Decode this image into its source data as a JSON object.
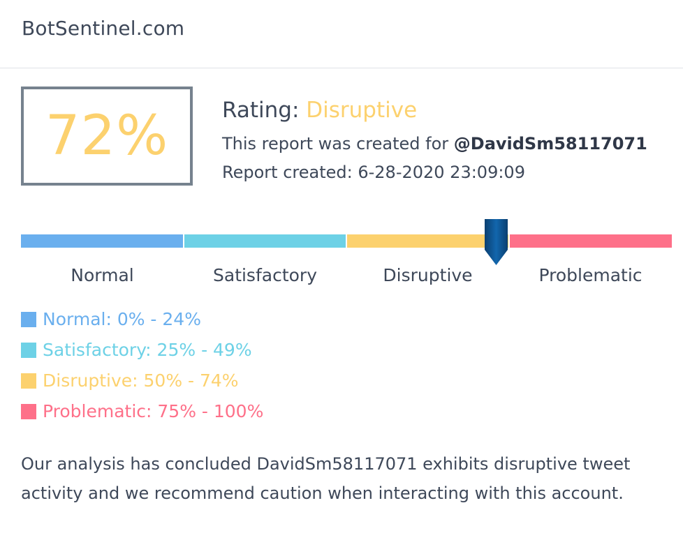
{
  "header": {
    "site_title": "BotSentinel.com"
  },
  "score": {
    "value": "72%",
    "percent": 72
  },
  "rating": {
    "label": "Rating:",
    "value": "Disruptive"
  },
  "report": {
    "created_for_text": "This report was created for",
    "handle": "@DavidSm58117071",
    "created_label": "Report created:",
    "created_at": "6-28-2020 23:09:09"
  },
  "scale": {
    "pointer_percent": 73,
    "segments": [
      {
        "label": "Normal",
        "color": "#6aafee"
      },
      {
        "label": "Satisfactory",
        "color": "#6dd1e6"
      },
      {
        "label": "Disruptive",
        "color": "#fcd16e"
      },
      {
        "label": "Problematic",
        "color": "#fe7089"
      }
    ],
    "pointer_color": "#0d4f8a"
  },
  "legend": [
    {
      "text": "Normal: 0% - 24%",
      "color": "#6aafee"
    },
    {
      "text": "Satisfactory: 25% - 49%",
      "color": "#6dd1e6"
    },
    {
      "text": "Disruptive: 50% - 74%",
      "color": "#fcd16e"
    },
    {
      "text": "Problematic: 75% - 100%",
      "color": "#fe7089"
    }
  ],
  "conclusion": "Our analysis has concluded DavidSm58117071 exhibits disruptive tweet activity and we recommend caution when interacting with this account.",
  "colors": {
    "accent": "#fcd16e",
    "box_border": "#76828e",
    "text": "#3e4859"
  }
}
